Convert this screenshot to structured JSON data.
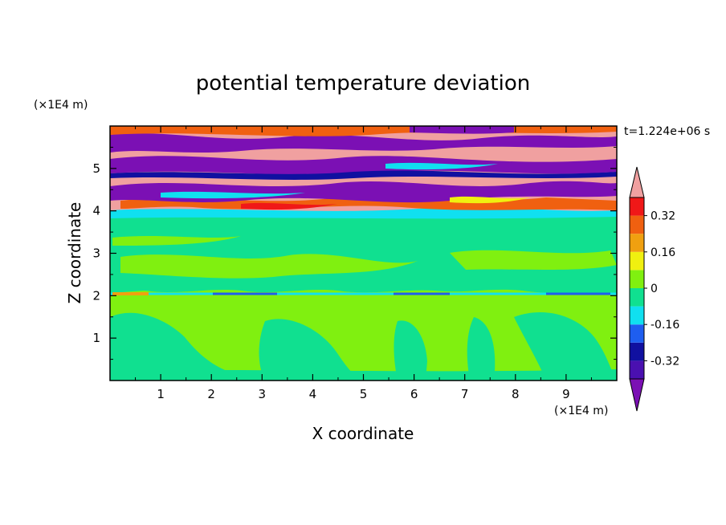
{
  "chart_data": {
    "type": "heatmap",
    "title": "potential temperature deviation",
    "xlabel": "X coordinate",
    "ylabel": "Z coordinate",
    "x_unit": "(×1E4 m)",
    "y_unit": "(×1E4 m)",
    "time_label": "t=1.224e+06 s",
    "xlim": [
      0,
      10
    ],
    "ylim": [
      0,
      6
    ],
    "x_ticks": [
      "1",
      "2",
      "3",
      "4",
      "5",
      "6",
      "7",
      "8",
      "9"
    ],
    "y_ticks": [
      "1",
      "2",
      "3",
      "4",
      "5"
    ],
    "colorbar": {
      "levels": [
        -0.48,
        -0.4,
        -0.32,
        -0.24,
        -0.16,
        -0.08,
        0,
        0.08,
        0.16,
        0.24,
        0.32,
        0.4,
        0.48
      ],
      "colors": [
        "#7b10b4",
        "#4a10b0",
        "#1010a0",
        "#1e5ef0",
        "#10e0f0",
        "#10e090",
        "#80f010",
        "#f0f010",
        "#f0a010",
        "#f06010",
        "#f01818",
        "#f0a0a0"
      ],
      "tick_labels": [
        "0.32",
        "0.16",
        "0",
        "-0.16",
        "-0.32"
      ],
      "tick_values": [
        0.32,
        0.16,
        0,
        -0.16,
        -0.32
      ],
      "extend": "both"
    },
    "layers": [
      {
        "z_range": [
          0,
          0.3
        ],
        "description_value": 0.02
      },
      {
        "z_range": [
          0.3,
          2.0
        ],
        "value": 0.02
      },
      {
        "z_range": [
          2.0,
          3.9
        ],
        "value": -0.02
      },
      {
        "z_range": [
          3.9,
          6.0
        ],
        "value_range": [
          -0.5,
          0.5
        ]
      }
    ]
  }
}
